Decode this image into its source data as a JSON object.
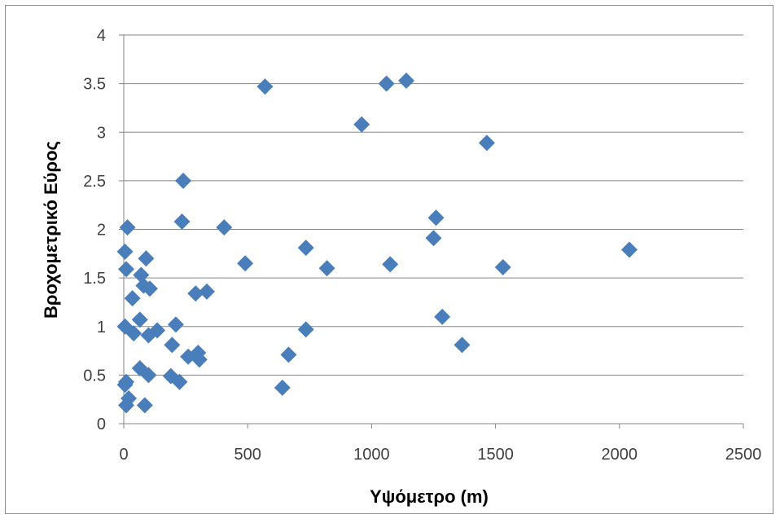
{
  "colors": {
    "marker": "#4a7ebb",
    "grid": "#868686",
    "axis": "#868686"
  },
  "chart_data": {
    "type": "scatter",
    "xlabel": "Υψόμετρο (m)",
    "ylabel": "Βροχομετρικό Εύρος",
    "xlim": [
      0,
      2500
    ],
    "ylim": [
      0,
      4
    ],
    "x_ticks": [
      0,
      500,
      1000,
      1500,
      2000,
      2500
    ],
    "y_ticks": [
      0,
      0.5,
      1,
      1.5,
      2,
      2.5,
      3,
      3.5,
      4
    ],
    "x_tick_labels": [
      "0",
      "500",
      "1000",
      "1500",
      "2000",
      "2500"
    ],
    "y_tick_labels": [
      "0",
      "0.5",
      "1",
      "1.5",
      "2",
      "2.5",
      "3",
      "3.5",
      "4"
    ],
    "grid": "horizontal",
    "legend": "none",
    "marker": "diamond",
    "points": [
      {
        "x": 570,
        "y": 3.47
      },
      {
        "x": 1060,
        "y": 3.5
      },
      {
        "x": 1140,
        "y": 3.53
      },
      {
        "x": 960,
        "y": 3.08
      },
      {
        "x": 1465,
        "y": 2.89
      },
      {
        "x": 240,
        "y": 2.5
      },
      {
        "x": 235,
        "y": 2.08
      },
      {
        "x": 405,
        "y": 2.02
      },
      {
        "x": 15,
        "y": 2.02
      },
      {
        "x": 1260,
        "y": 2.12
      },
      {
        "x": 1250,
        "y": 1.91
      },
      {
        "x": 735,
        "y": 1.81
      },
      {
        "x": 2040,
        "y": 1.79
      },
      {
        "x": 5,
        "y": 1.77
      },
      {
        "x": 90,
        "y": 1.7
      },
      {
        "x": 490,
        "y": 1.65
      },
      {
        "x": 1075,
        "y": 1.64
      },
      {
        "x": 820,
        "y": 1.6
      },
      {
        "x": 1530,
        "y": 1.61
      },
      {
        "x": 10,
        "y": 1.59
      },
      {
        "x": 70,
        "y": 1.53
      },
      {
        "x": 80,
        "y": 1.42
      },
      {
        "x": 105,
        "y": 1.39
      },
      {
        "x": 290,
        "y": 1.34
      },
      {
        "x": 335,
        "y": 1.36
      },
      {
        "x": 35,
        "y": 1.29
      },
      {
        "x": 1285,
        "y": 1.1
      },
      {
        "x": 65,
        "y": 1.07
      },
      {
        "x": 210,
        "y": 1.02
      },
      {
        "x": 5,
        "y": 1.0
      },
      {
        "x": 735,
        "y": 0.97
      },
      {
        "x": 135,
        "y": 0.96
      },
      {
        "x": 40,
        "y": 0.93
      },
      {
        "x": 100,
        "y": 0.91
      },
      {
        "x": 195,
        "y": 0.81
      },
      {
        "x": 1365,
        "y": 0.81
      },
      {
        "x": 300,
        "y": 0.73
      },
      {
        "x": 665,
        "y": 0.71
      },
      {
        "x": 260,
        "y": 0.69
      },
      {
        "x": 305,
        "y": 0.66
      },
      {
        "x": 65,
        "y": 0.57
      },
      {
        "x": 100,
        "y": 0.5
      },
      {
        "x": 190,
        "y": 0.49
      },
      {
        "x": 225,
        "y": 0.43
      },
      {
        "x": 10,
        "y": 0.43
      },
      {
        "x": 5,
        "y": 0.4
      },
      {
        "x": 640,
        "y": 0.37
      },
      {
        "x": 20,
        "y": 0.26
      },
      {
        "x": 10,
        "y": 0.19
      },
      {
        "x": 85,
        "y": 0.19
      }
    ]
  }
}
